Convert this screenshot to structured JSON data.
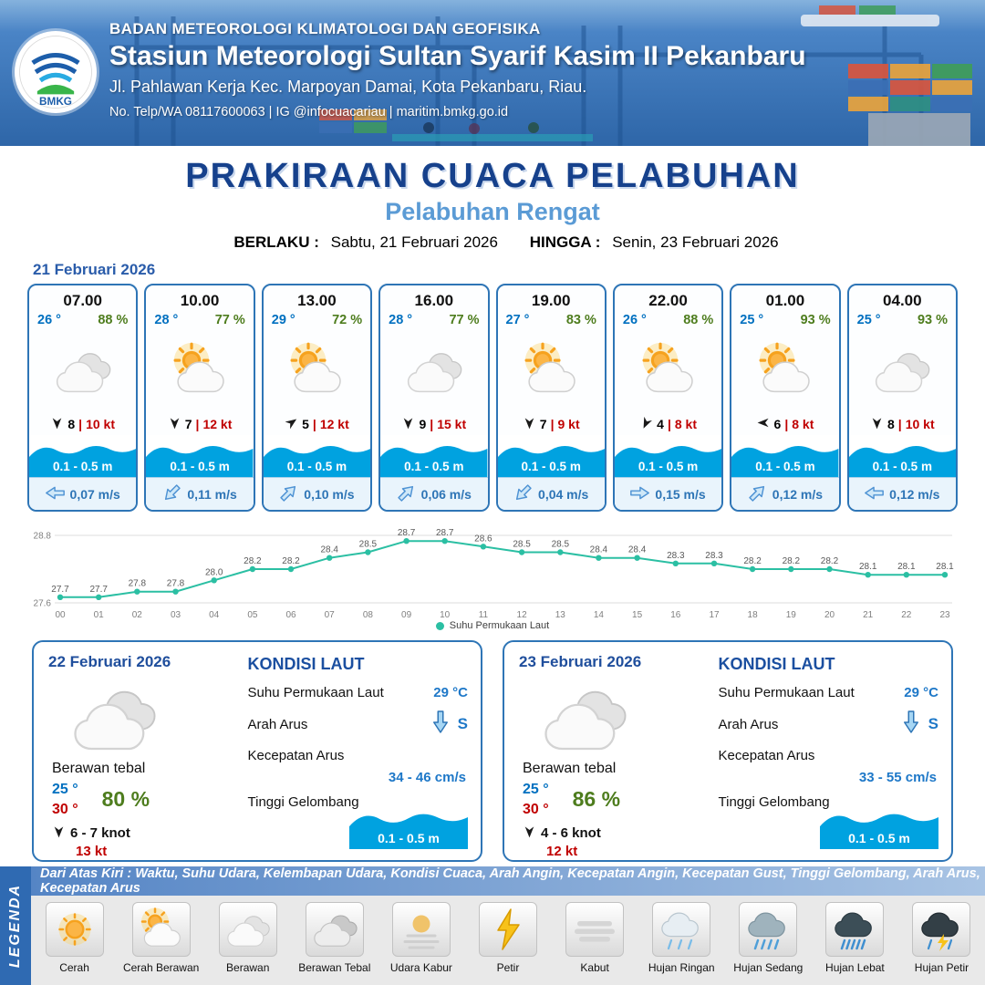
{
  "header": {
    "logo_label": "BMKG",
    "org": "BADAN METEOROLOGI KLIMATOLOGI DAN GEOFISIKA",
    "station": "Stasiun Meteorologi Sultan Syarif Kasim II Pekanbaru",
    "address": "Jl. Pahlawan Kerja Kec. Marpoyan Damai, Kota Pekanbaru, Riau.",
    "contact": "No. Telp/WA 08117600063 | IG @infocuacariau | maritim.bmkg.go.id"
  },
  "title": {
    "main": "PRAKIRAAN CUACA PELABUHAN",
    "sub": "Pelabuhan Rengat",
    "berlaku_label": "BERLAKU :",
    "berlaku_value": "Sabtu, 21 Februari 2026",
    "hingga_label": "HINGGA :",
    "hingga_value": "Senin, 23 Februari 2026"
  },
  "colors": {
    "accent_blue": "#2e75b6",
    "temp_blue": "#0070c0",
    "rh_green": "#4e7d1e",
    "gust_red": "#c00000",
    "wave_blue": "#00a2e0",
    "chart_teal": "#2bbfa3"
  },
  "day1": {
    "date": "21 Februari 2026",
    "cards": [
      {
        "time": "07.00",
        "temp": "26 °",
        "rh": "88 %",
        "icon": "berawan",
        "wind_speed": "8",
        "wind_sep": "|",
        "gust": "10 kt",
        "wind_deg": 0,
        "wave": "0.1 - 0.5 m",
        "current": "0,07 m/s",
        "current_deg": 180
      },
      {
        "time": "10.00",
        "temp": "28 °",
        "rh": "77 %",
        "icon": "cerah-berawan",
        "wind_speed": "7",
        "wind_sep": "|",
        "gust": "12 kt",
        "wind_deg": 0,
        "wave": "0.1 - 0.5 m",
        "current": "0,11 m/s",
        "current_deg": 135
      },
      {
        "time": "13.00",
        "temp": "29 °",
        "rh": "72 %",
        "icon": "cerah-berawan",
        "wind_speed": "5",
        "wind_sep": "|",
        "gust": "12 kt",
        "wind_deg": 235,
        "wave": "0.1 - 0.5 m",
        "current": "0,10 m/s",
        "current_deg": -45
      },
      {
        "time": "16.00",
        "temp": "28 °",
        "rh": "77 %",
        "icon": "berawan",
        "wind_speed": "9",
        "wind_sep": "|",
        "gust": "15 kt",
        "wind_deg": 0,
        "wave": "0.1 - 0.5 m",
        "current": "0,06 m/s",
        "current_deg": -45
      },
      {
        "time": "19.00",
        "temp": "27 °",
        "rh": "83 %",
        "icon": "cerah-berawan",
        "wind_speed": "7",
        "wind_sep": "|",
        "gust": "9 kt",
        "wind_deg": 0,
        "wave": "0.1 - 0.5 m",
        "current": "0,04 m/s",
        "current_deg": 135
      },
      {
        "time": "22.00",
        "temp": "26 °",
        "rh": "88 %",
        "icon": "cerah-berawan",
        "wind_speed": "4",
        "wind_sep": "|",
        "gust": "8 kt",
        "wind_deg": 25,
        "wave": "0.1 - 0.5 m",
        "current": "0,15 m/s",
        "current_deg": 0
      },
      {
        "time": "01.00",
        "temp": "25 °",
        "rh": "93 %",
        "icon": "cerah-berawan",
        "wind_speed": "6",
        "wind_sep": "|",
        "gust": "8 kt",
        "wind_deg": 90,
        "wave": "0.1 - 0.5 m",
        "current": "0,12 m/s",
        "current_deg": -45
      },
      {
        "time": "04.00",
        "temp": "25 °",
        "rh": "93 %",
        "icon": "berawan",
        "wind_speed": "8",
        "wind_sep": "|",
        "gust": "10 kt",
        "wind_deg": 0,
        "wave": "0.1 - 0.5 m",
        "current": "0,12 m/s",
        "current_deg": 180
      }
    ]
  },
  "chart_data": {
    "type": "line",
    "title": "",
    "series_name": "Suhu Permukaan Laut",
    "x": [
      "00",
      "01",
      "02",
      "03",
      "04",
      "05",
      "06",
      "07",
      "08",
      "09",
      "10",
      "11",
      "12",
      "13",
      "14",
      "15",
      "16",
      "17",
      "18",
      "19",
      "20",
      "21",
      "22",
      "23"
    ],
    "values": [
      27.7,
      27.7,
      27.8,
      27.8,
      28.0,
      28.2,
      28.2,
      28.4,
      28.5,
      28.7,
      28.7,
      28.6,
      28.5,
      28.5,
      28.4,
      28.4,
      28.3,
      28.3,
      28.2,
      28.2,
      28.2,
      28.1,
      28.1,
      28.1
    ],
    "ylim": [
      27.6,
      28.8
    ],
    "yticks": [
      27.6,
      28.8
    ],
    "grid": true,
    "legend_position": "bottom",
    "line_color": "#2bbfa3"
  },
  "day2": {
    "date": "22 Februari 2026",
    "icon": "berawan",
    "condition": "Berawan tebal",
    "temp_min": "25 °",
    "temp_max": "30 °",
    "rh": "80 %",
    "wind": "6 - 7 knot",
    "gust": "13 kt",
    "sea": {
      "title": "KONDISI LAUT",
      "sst_label": "Suhu Permukaan Laut",
      "sst": "29 °C",
      "current_dir_label": "Arah Arus",
      "current_dir": "S",
      "current_speed_label": "Kecepatan Arus",
      "current_speed": "34 - 46 cm/s",
      "wave_label": "Tinggi Gelombang",
      "wave": "0.1 - 0.5 m"
    }
  },
  "day3": {
    "date": "23 Februari 2026",
    "icon": "berawan",
    "condition": "Berawan tebal",
    "temp_min": "25 °",
    "temp_max": "30 °",
    "rh": "86 %",
    "wind": "4 - 6 knot",
    "gust": "12 kt",
    "sea": {
      "title": "KONDISI LAUT",
      "sst_label": "Suhu Permukaan Laut",
      "sst": "29 °C",
      "current_dir_label": "Arah Arus",
      "current_dir": "S",
      "current_speed_label": "Kecepatan Arus",
      "current_speed": "33 - 55 cm/s",
      "wave_label": "Tinggi Gelombang",
      "wave": "0.1 - 0.5 m"
    }
  },
  "legend": {
    "title": "LEGENDA",
    "note": "Dari Atas Kiri : Waktu, Suhu Udara, Kelembapan Udara, Kondisi Cuaca, Arah Angin, Kecepatan Angin, Kecepatan Gust, Tinggi Gelombang, Arah Arus, Kecepatan Arus",
    "items": [
      {
        "icon": "cerah",
        "label": "Cerah"
      },
      {
        "icon": "cerah-berawan",
        "label": "Cerah Berawan"
      },
      {
        "icon": "berawan",
        "label": "Berawan"
      },
      {
        "icon": "berawan-tebal",
        "label": "Berawan Tebal"
      },
      {
        "icon": "udara-kabur",
        "label": "Udara Kabur"
      },
      {
        "icon": "petir",
        "label": "Petir"
      },
      {
        "icon": "kabut",
        "label": "Kabut"
      },
      {
        "icon": "hujan-ringan",
        "label": "Hujan Ringan"
      },
      {
        "icon": "hujan-sedang",
        "label": "Hujan Sedang"
      },
      {
        "icon": "hujan-lebat",
        "label": "Hujan Lebat"
      },
      {
        "icon": "hujan-petir",
        "label": "Hujan Petir"
      }
    ]
  }
}
